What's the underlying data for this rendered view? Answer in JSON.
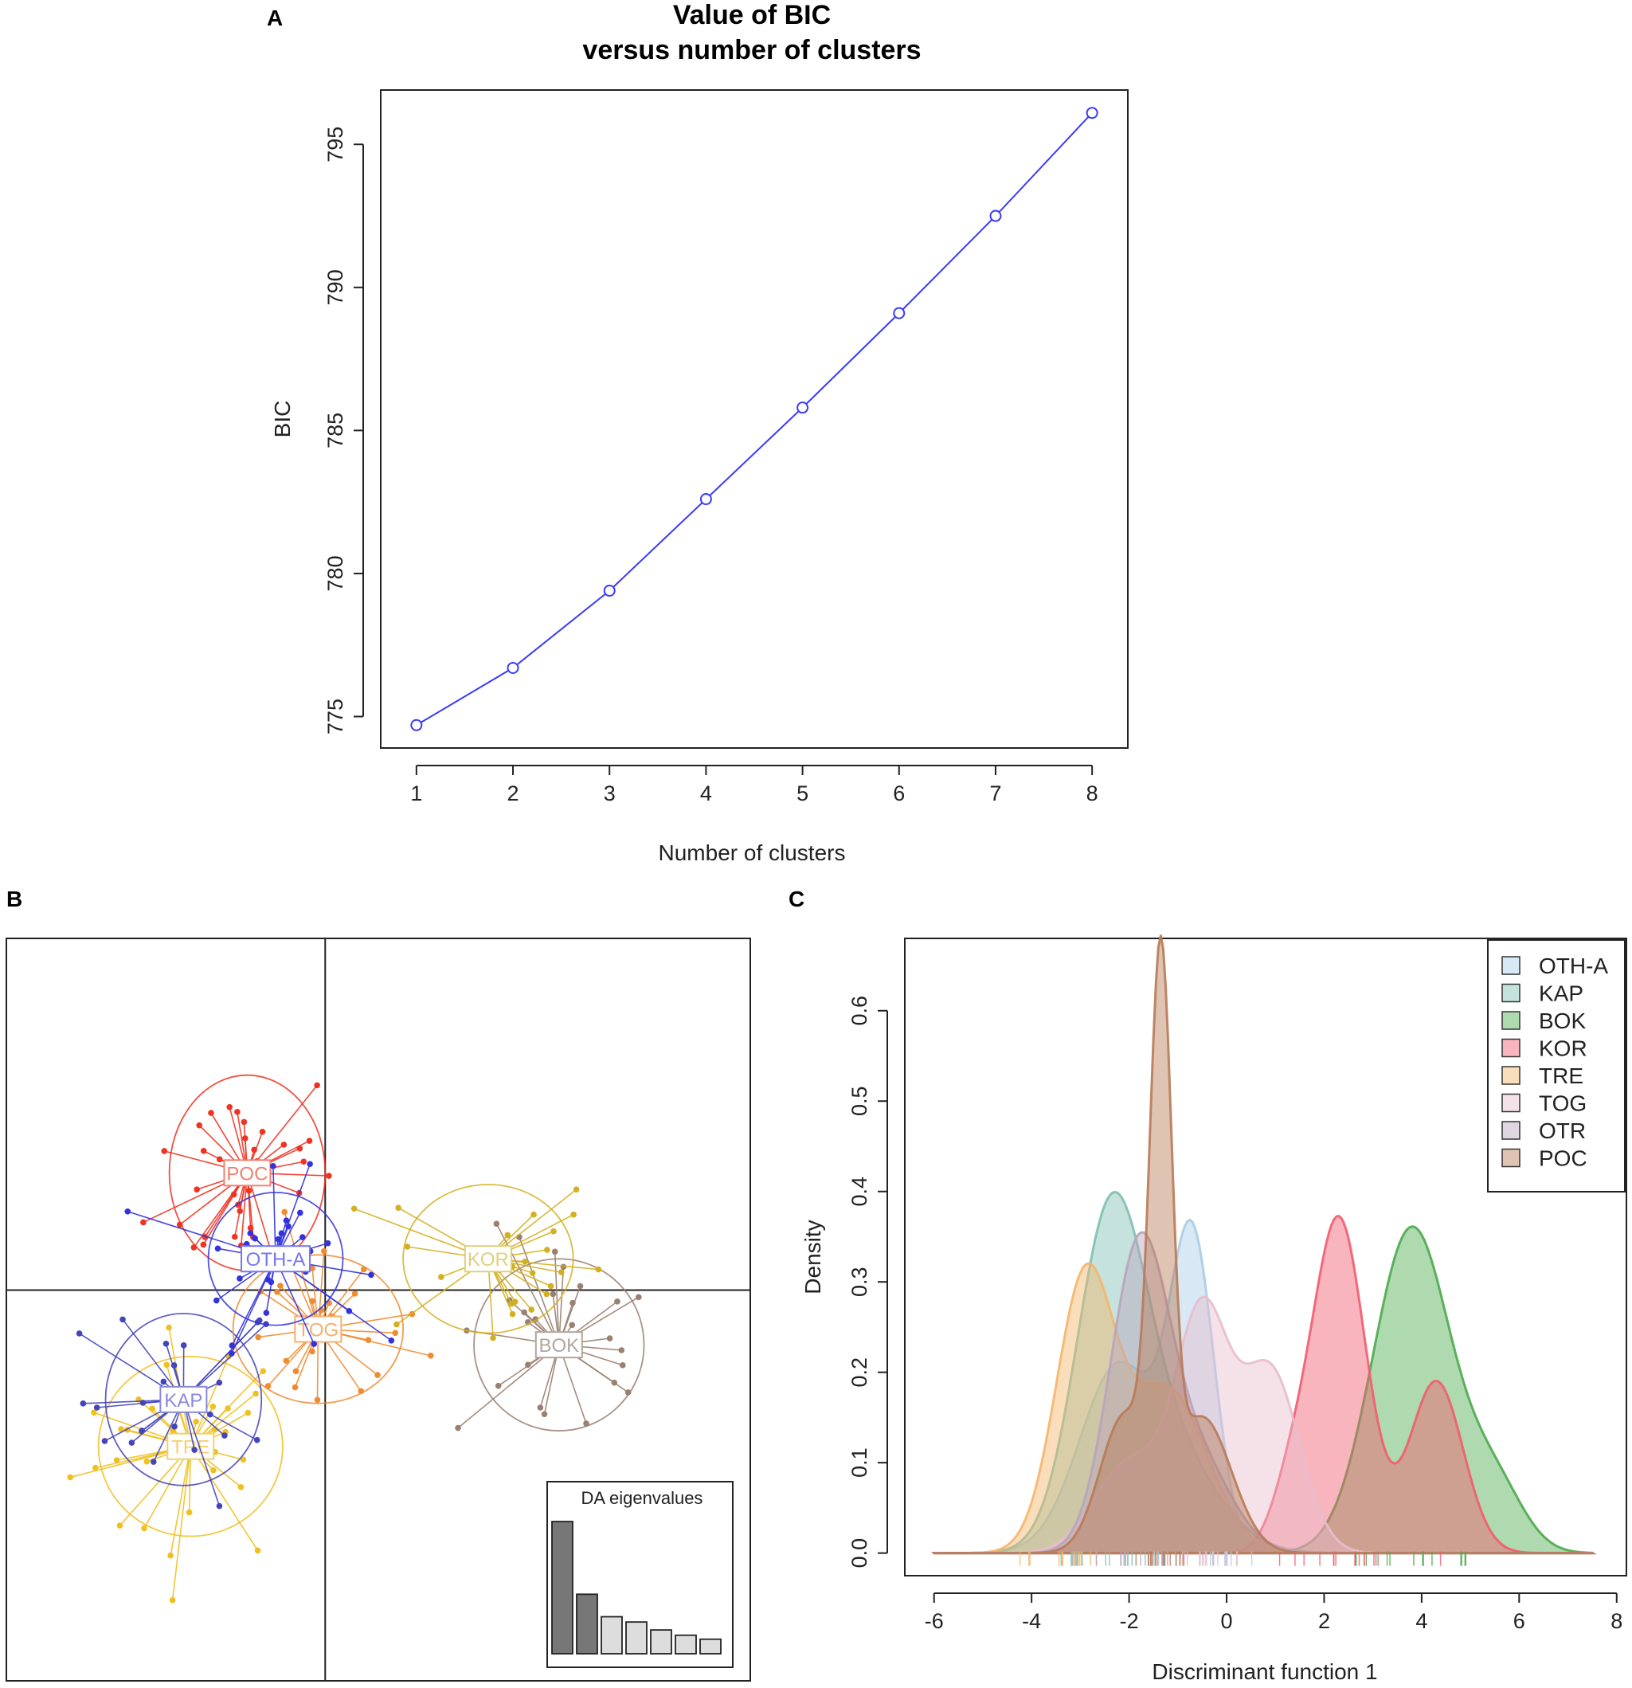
{
  "panels": {
    "a": {
      "letter": "A"
    },
    "b": {
      "letter": "B"
    },
    "c": {
      "letter": "C"
    }
  },
  "chart_data": [
    {
      "id": "A",
      "type": "line",
      "title": [
        "Value of BIC",
        "versus number of clusters"
      ],
      "xlabel": "Number of clusters",
      "ylabel": "BIC",
      "x": [
        1,
        2,
        3,
        4,
        5,
        6,
        7,
        8
      ],
      "values": [
        774.7,
        776.7,
        779.4,
        782.6,
        785.8,
        789.1,
        792.5,
        796.1
      ],
      "xticks": [
        1,
        2,
        3,
        4,
        5,
        6,
        7,
        8
      ],
      "yticks": [
        775,
        780,
        785,
        790,
        795
      ],
      "xlim": [
        0.63,
        8.37
      ],
      "ylim": [
        773.9,
        796.9
      ],
      "color": "#3a3aff",
      "marker": "open-circle"
    },
    {
      "id": "B",
      "type": "scatter",
      "title": "",
      "xlabel": "",
      "ylabel": "",
      "xlim": [
        -4.5,
        6
      ],
      "ylim": [
        -5,
        4.5
      ],
      "groups": [
        {
          "name": "POC",
          "color": "#ee3322",
          "label_color": "#f08070",
          "center": [
            -1.1,
            1.5
          ],
          "ellipse": [
            1.1,
            1.25
          ],
          "n": 38,
          "spread": [
            0.9,
            1.0
          ]
        },
        {
          "name": "OTH-A",
          "color": "#3333dd",
          "label_color": "#7777ee",
          "center": [
            -0.7,
            0.4
          ],
          "ellipse": [
            0.95,
            0.85
          ],
          "n": 30,
          "spread": [
            0.8,
            0.7
          ]
        },
        {
          "name": "KOR",
          "color": "#d4b020",
          "label_color": "#e0d080",
          "center": [
            2.3,
            0.4
          ],
          "ellipse": [
            1.2,
            0.95
          ],
          "n": 26,
          "spread": [
            1.1,
            0.8
          ]
        },
        {
          "name": "BOK",
          "color": "#9a8070",
          "label_color": "#b0a8a0",
          "center": [
            3.3,
            -0.7
          ],
          "ellipse": [
            1.2,
            1.1
          ],
          "n": 26,
          "spread": [
            1.0,
            0.95
          ]
        },
        {
          "name": "TOG",
          "color": "#f08c30",
          "label_color": "#f4b070",
          "center": [
            -0.1,
            -0.5
          ],
          "ellipse": [
            1.2,
            0.95
          ],
          "n": 26,
          "spread": [
            1.0,
            0.8
          ]
        },
        {
          "name": "KAP",
          "color": "#4444bb",
          "label_color": "#8a8ad8",
          "center": [
            -2.0,
            -1.4
          ],
          "ellipse": [
            1.1,
            1.1
          ],
          "n": 24,
          "spread": [
            0.95,
            0.9
          ]
        },
        {
          "name": "TRE",
          "color": "#f0c020",
          "label_color": "#f2d070",
          "center": [
            -1.9,
            -2.0
          ],
          "ellipse": [
            1.3,
            1.15
          ],
          "n": 34,
          "spread": [
            1.1,
            1.0
          ]
        }
      ],
      "inset": {
        "title": "DA eigenvalues",
        "values": [
          100,
          45,
          28,
          24,
          18,
          14,
          11
        ],
        "retained": 2
      }
    },
    {
      "id": "C",
      "type": "area",
      "title": "",
      "xlabel": "Discriminant function 1",
      "ylabel": "Density",
      "xlim": [
        -6.6,
        8.2
      ],
      "ylim": [
        -0.025,
        0.68
      ],
      "xticks": [
        -6,
        -4,
        -2,
        0,
        2,
        4,
        6,
        8
      ],
      "yticks": [
        0.0,
        0.1,
        0.2,
        0.3,
        0.4,
        0.5,
        0.6
      ],
      "series": [
        {
          "name": "OTH-A",
          "color": "#a9cde6",
          "components": [
            [
              -0.7,
              0.45,
              0.33
            ],
            [
              -2.2,
              0.8,
              0.21
            ]
          ]
        },
        {
          "name": "KAP",
          "color": "#7fbfb2",
          "components": [
            [
              -2.4,
              0.7,
              0.33
            ],
            [
              -1.3,
              1.0,
              0.12
            ]
          ]
        },
        {
          "name": "BOK",
          "color": "#4daa4d",
          "components": [
            [
              3.8,
              0.8,
              0.36
            ],
            [
              5.5,
              0.6,
              0.07
            ]
          ]
        },
        {
          "name": "KOR",
          "color": "#f25c6e",
          "components": [
            [
              2.3,
              0.55,
              0.37
            ],
            [
              4.3,
              0.55,
              0.19
            ],
            [
              1.3,
              0.4,
              0.06
            ]
          ]
        },
        {
          "name": "TRE",
          "color": "#f5b56a",
          "components": [
            [
              -2.9,
              0.6,
              0.3
            ],
            [
              -1.2,
              0.8,
              0.18
            ]
          ]
        },
        {
          "name": "TOG",
          "color": "#e8bccc",
          "components": [
            [
              -0.5,
              0.55,
              0.26
            ],
            [
              0.9,
              0.6,
              0.2
            ],
            [
              -2.0,
              0.7,
              0.1
            ]
          ]
        },
        {
          "name": "OTR",
          "color": "#b7a4bc",
          "components": [
            [
              -1.8,
              0.6,
              0.33
            ],
            [
              -0.6,
              0.7,
              0.1
            ]
          ]
        },
        {
          "name": "POC",
          "color": "#b87a56",
          "components": [
            [
              -1.35,
              0.22,
              0.58
            ],
            [
              -2.1,
              0.5,
              0.15
            ],
            [
              -0.5,
              0.6,
              0.15
            ]
          ]
        }
      ],
      "legend": [
        "OTH-A",
        "KAP",
        "BOK",
        "KOR",
        "TRE",
        "TOG",
        "OTR",
        "POC"
      ],
      "legend_position": "top-right"
    }
  ]
}
